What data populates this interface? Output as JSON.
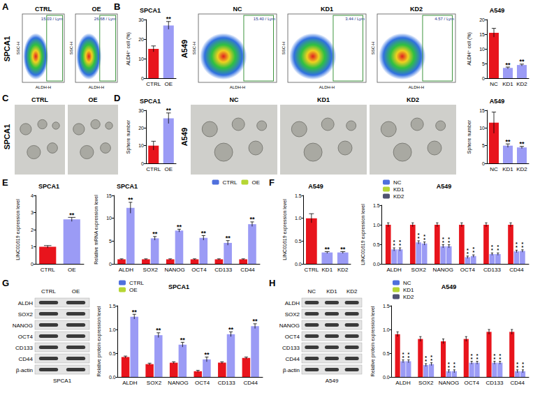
{
  "panel_letters": [
    "A",
    "B",
    "C",
    "D",
    "E",
    "F",
    "G",
    "H"
  ],
  "row_labels": [
    "SPCA1",
    "A549"
  ],
  "flow_cytometry": {
    "x_label": "ALDH-H",
    "y_label": "SSC-H",
    "plots": [
      {
        "cell_line": "SPCA1",
        "name": "CTRL",
        "gate": "15.03 / Lym"
      },
      {
        "cell_line": "SPCA1",
        "name": "OE",
        "gate": "26.68 / Lym"
      },
      {
        "cell_line": "A549",
        "name": "NC",
        "gate": "15.40 / Lym"
      },
      {
        "cell_line": "A549",
        "name": "KD1",
        "gate": "3.44 / Lym"
      },
      {
        "cell_line": "A549",
        "name": "KD2",
        "gate": "4.57 / Lym"
      }
    ]
  },
  "sphere_images": [
    {
      "cell_line": "SPCA1",
      "name": "CTRL"
    },
    {
      "cell_line": "SPCA1",
      "name": "OE"
    },
    {
      "cell_line": "A549",
      "name": "NC"
    },
    {
      "cell_line": "A549",
      "name": "KD1"
    },
    {
      "cell_line": "A549",
      "name": "KD2"
    }
  ],
  "western_blots": [
    {
      "cell_line": "SPCA1",
      "lanes": [
        "CTRL",
        "OE"
      ],
      "proteins": [
        "ALDH",
        "SOX2",
        "NANOG",
        "OCT4",
        "CD133",
        "CD44",
        "β-actin"
      ]
    },
    {
      "cell_line": "A549",
      "lanes": [
        "NC",
        "KD1",
        "KD2"
      ],
      "proteins": [
        "ALDH",
        "SOX2",
        "NANOG",
        "OCT4",
        "CD133",
        "CD44",
        "β-actin"
      ]
    }
  ],
  "chart_data": [
    {
      "type": "bar",
      "title": "SPCA1",
      "y_label": "ALDH⁺ cell (%)",
      "categories": [
        "CTRL",
        "OE"
      ],
      "values": [
        15,
        27
      ],
      "errors": [
        1.5,
        2
      ],
      "significance": [
        null,
        "**"
      ],
      "colors": [
        "#e8141c",
        "#9b9bf5"
      ],
      "ylim": [
        0,
        30
      ],
      "yticks": [
        0,
        10,
        20,
        30
      ],
      "grid": false
    },
    {
      "type": "bar",
      "title": "A549",
      "y_label": "ALDH⁺ cell (%)",
      "categories": [
        "NC",
        "KD1",
        "KD2"
      ],
      "values": [
        15.5,
        3.5,
        4.5
      ],
      "errors": [
        1.5,
        0.3,
        0.3
      ],
      "significance": [
        null,
        "**",
        "**"
      ],
      "colors": [
        "#e8141c",
        "#9b9bf5",
        "#9b9bf5"
      ],
      "ylim": [
        0,
        20
      ],
      "yticks": [
        0,
        5,
        10,
        15,
        20
      ],
      "grid": false
    },
    {
      "type": "bar",
      "title": "SPCA1",
      "y_label": "Sphere number",
      "categories": [
        "CTRL",
        "OE"
      ],
      "values": [
        10,
        25.5
      ],
      "errors": [
        2.5,
        3
      ],
      "significance": [
        null,
        "**"
      ],
      "colors": [
        "#e8141c",
        "#9b9bf5"
      ],
      "ylim": [
        0,
        30
      ],
      "yticks": [
        0,
        10,
        20,
        30
      ],
      "grid": false
    },
    {
      "type": "bar",
      "title": "A549",
      "y_label": "Sphere number",
      "categories": [
        "NC",
        "KD1",
        "KD2"
      ],
      "values": [
        11.5,
        5,
        4.5
      ],
      "errors": [
        3,
        0.5,
        0.3
      ],
      "significance": [
        null,
        "**",
        "**"
      ],
      "colors": [
        "#e8141c",
        "#9b9bf5",
        "#9b9bf5"
      ],
      "ylim": [
        0,
        15
      ],
      "yticks": [
        0,
        5,
        10,
        15
      ],
      "grid": false
    },
    {
      "type": "bar",
      "title": "SPCA1",
      "y_label": "LINC01619 expression level",
      "categories": [
        "CTRL",
        "OE"
      ],
      "values": [
        1,
        2.6
      ],
      "errors": [
        0.07,
        0.12
      ],
      "significance": [
        null,
        "**"
      ],
      "colors": [
        "#e8141c",
        "#9b9bf5"
      ],
      "ylim": [
        0,
        4
      ],
      "yticks": [
        0,
        1,
        2,
        3,
        4
      ],
      "grid": false
    },
    {
      "type": "bar",
      "title": "SPCA1",
      "y_label": "Relative mRNA expression level",
      "categories": [
        "ALDH",
        "SOX2",
        "NANOG",
        "OCT4",
        "CD133",
        "CD44"
      ],
      "series": [
        {
          "name": "CTRL",
          "color": "#e8141c",
          "values": [
            1,
            1,
            1,
            1,
            1,
            1
          ],
          "errors": [
            0.1,
            0.1,
            0.1,
            0.1,
            0.1,
            0.1
          ],
          "significance": [
            null,
            null,
            null,
            null,
            null,
            null
          ]
        },
        {
          "name": "OE",
          "color": "#9b9bf5",
          "values": [
            12.3,
            5.6,
            7.3,
            5.7,
            4.6,
            8.7
          ],
          "errors": [
            1.2,
            0.4,
            0.3,
            0.5,
            0.5,
            0.5
          ],
          "significance": [
            "**",
            "**",
            "**",
            "**",
            "**",
            "**"
          ]
        }
      ],
      "legend": "top",
      "ylim": [
        0,
        15
      ],
      "yticks": [
        0,
        5,
        10,
        15
      ],
      "grid": false
    },
    {
      "type": "bar",
      "title": "A549",
      "y_label": "LINC01619 expression level",
      "categories": [
        "CTRL",
        "KD1",
        "KD2"
      ],
      "values": [
        1,
        0.25,
        0.25
      ],
      "errors": [
        0.1,
        0.02,
        0.02
      ],
      "significance": [
        null,
        "**",
        "**"
      ],
      "colors": [
        "#e8141c",
        "#9b9bf5",
        "#9b9bf5"
      ],
      "ylim": [
        0,
        1.5
      ],
      "yticks": [
        {
          "value": 0,
          "label": "0.0"
        },
        0.5,
        {
          "value": 1,
          "label": "1.0"
        },
        1.5
      ],
      "grid": false
    },
    {
      "type": "bar",
      "title": "A549",
      "y_label": "LINC01619 expression level",
      "categories": [
        "ALDH",
        "SOX2",
        "NANOG",
        "OCT4",
        "CD133",
        "CD44"
      ],
      "series": [
        {
          "name": "NC",
          "color": "#e8141c",
          "values": [
            1,
            1,
            1,
            1,
            1,
            1
          ],
          "errors": [
            0.05,
            0.05,
            0.05,
            0.05,
            0.05,
            0.05
          ],
          "significance": [
            null,
            null,
            null,
            null,
            null,
            null
          ]
        },
        {
          "name": "KD1",
          "color": "#9b9bf5",
          "values": [
            0.37,
            0.55,
            0.45,
            0.17,
            0.25,
            0.32
          ],
          "errors": [
            0.04,
            0.04,
            0.04,
            0.03,
            0.03,
            0.03
          ],
          "significance": [
            "**",
            "**",
            "**",
            "**",
            "**",
            "**"
          ]
        },
        {
          "name": "KD2",
          "color": "#9b9bf5",
          "values": [
            0.37,
            0.52,
            0.45,
            0.2,
            0.25,
            0.33
          ],
          "errors": [
            0.04,
            0.04,
            0.04,
            0.03,
            0.03,
            0.03
          ],
          "significance": [
            "**",
            "**",
            "**",
            "**",
            "**",
            "**"
          ]
        }
      ],
      "legend": "top-left",
      "ylim": [
        0,
        1.5
      ],
      "yticks": [
        {
          "value": 0,
          "label": "0.0"
        },
        0.5,
        {
          "value": 1,
          "label": "1.0"
        },
        1.5
      ],
      "grid": false
    },
    {
      "type": "bar",
      "title": "SPCA1",
      "y_label": "Relative protein expression level",
      "categories": [
        "ALDH",
        "SOX2",
        "NANOG",
        "OCT4",
        "CD133",
        "CD44"
      ],
      "series": [
        {
          "name": "CTRL",
          "color": "#e8141c",
          "values": [
            0.42,
            0.27,
            0.3,
            0.12,
            0.3,
            0.4
          ],
          "errors": [
            0.02,
            0.02,
            0.02,
            0.02,
            0.02,
            0.02
          ],
          "significance": [
            null,
            null,
            null,
            null,
            null,
            null
          ]
        },
        {
          "name": "OE",
          "color": "#9b9bf5",
          "values": [
            1.27,
            0.88,
            0.68,
            0.37,
            0.9,
            1.07
          ],
          "errors": [
            0.05,
            0.05,
            0.05,
            0.05,
            0.05,
            0.05
          ],
          "significance": [
            "**",
            "**",
            "**",
            "**",
            "**",
            "**"
          ]
        }
      ],
      "legend": "top-left",
      "ylim": [
        0,
        1.5
      ],
      "yticks": [
        {
          "value": 0,
          "label": "0.0"
        },
        0.5,
        {
          "value": 1,
          "label": "1.0"
        },
        1.5
      ],
      "grid": false
    },
    {
      "type": "bar",
      "title": "A549",
      "y_label": "Relative protein expression level",
      "categories": [
        "ALDH",
        "SOX2",
        "NANOG",
        "OCT4",
        "CD133",
        "CD44"
      ],
      "series": [
        {
          "name": "NC",
          "color": "#e8141c",
          "values": [
            0.9,
            0.8,
            0.75,
            0.8,
            0.95,
            0.95
          ],
          "errors": [
            0.05,
            0.05,
            0.05,
            0.05,
            0.05,
            0.05
          ],
          "significance": [
            null,
            null,
            null,
            null,
            null,
            null
          ]
        },
        {
          "name": "KD1",
          "color": "#9b9bf5",
          "values": [
            0.33,
            0.25,
            0.12,
            0.3,
            0.3,
            0.12
          ],
          "errors": [
            0.03,
            0.03,
            0.03,
            0.03,
            0.03,
            0.03
          ],
          "significance": [
            "**",
            "**",
            "**",
            "**",
            "**",
            "**"
          ]
        },
        {
          "name": "KD2",
          "color": "#9b9bf5",
          "values": [
            0.33,
            0.27,
            0.12,
            0.3,
            0.3,
            0.12
          ],
          "errors": [
            0.03,
            0.03,
            0.03,
            0.03,
            0.03,
            0.03
          ],
          "significance": [
            "**",
            "**",
            "**",
            "**",
            "**",
            "**"
          ]
        }
      ],
      "legend": "top-left",
      "ylim": [
        0,
        1.5
      ],
      "yticks": [
        {
          "value": 0,
          "label": "0.0"
        },
        0.5,
        {
          "value": 1,
          "label": "1.0"
        },
        1.5
      ],
      "grid": false
    }
  ]
}
